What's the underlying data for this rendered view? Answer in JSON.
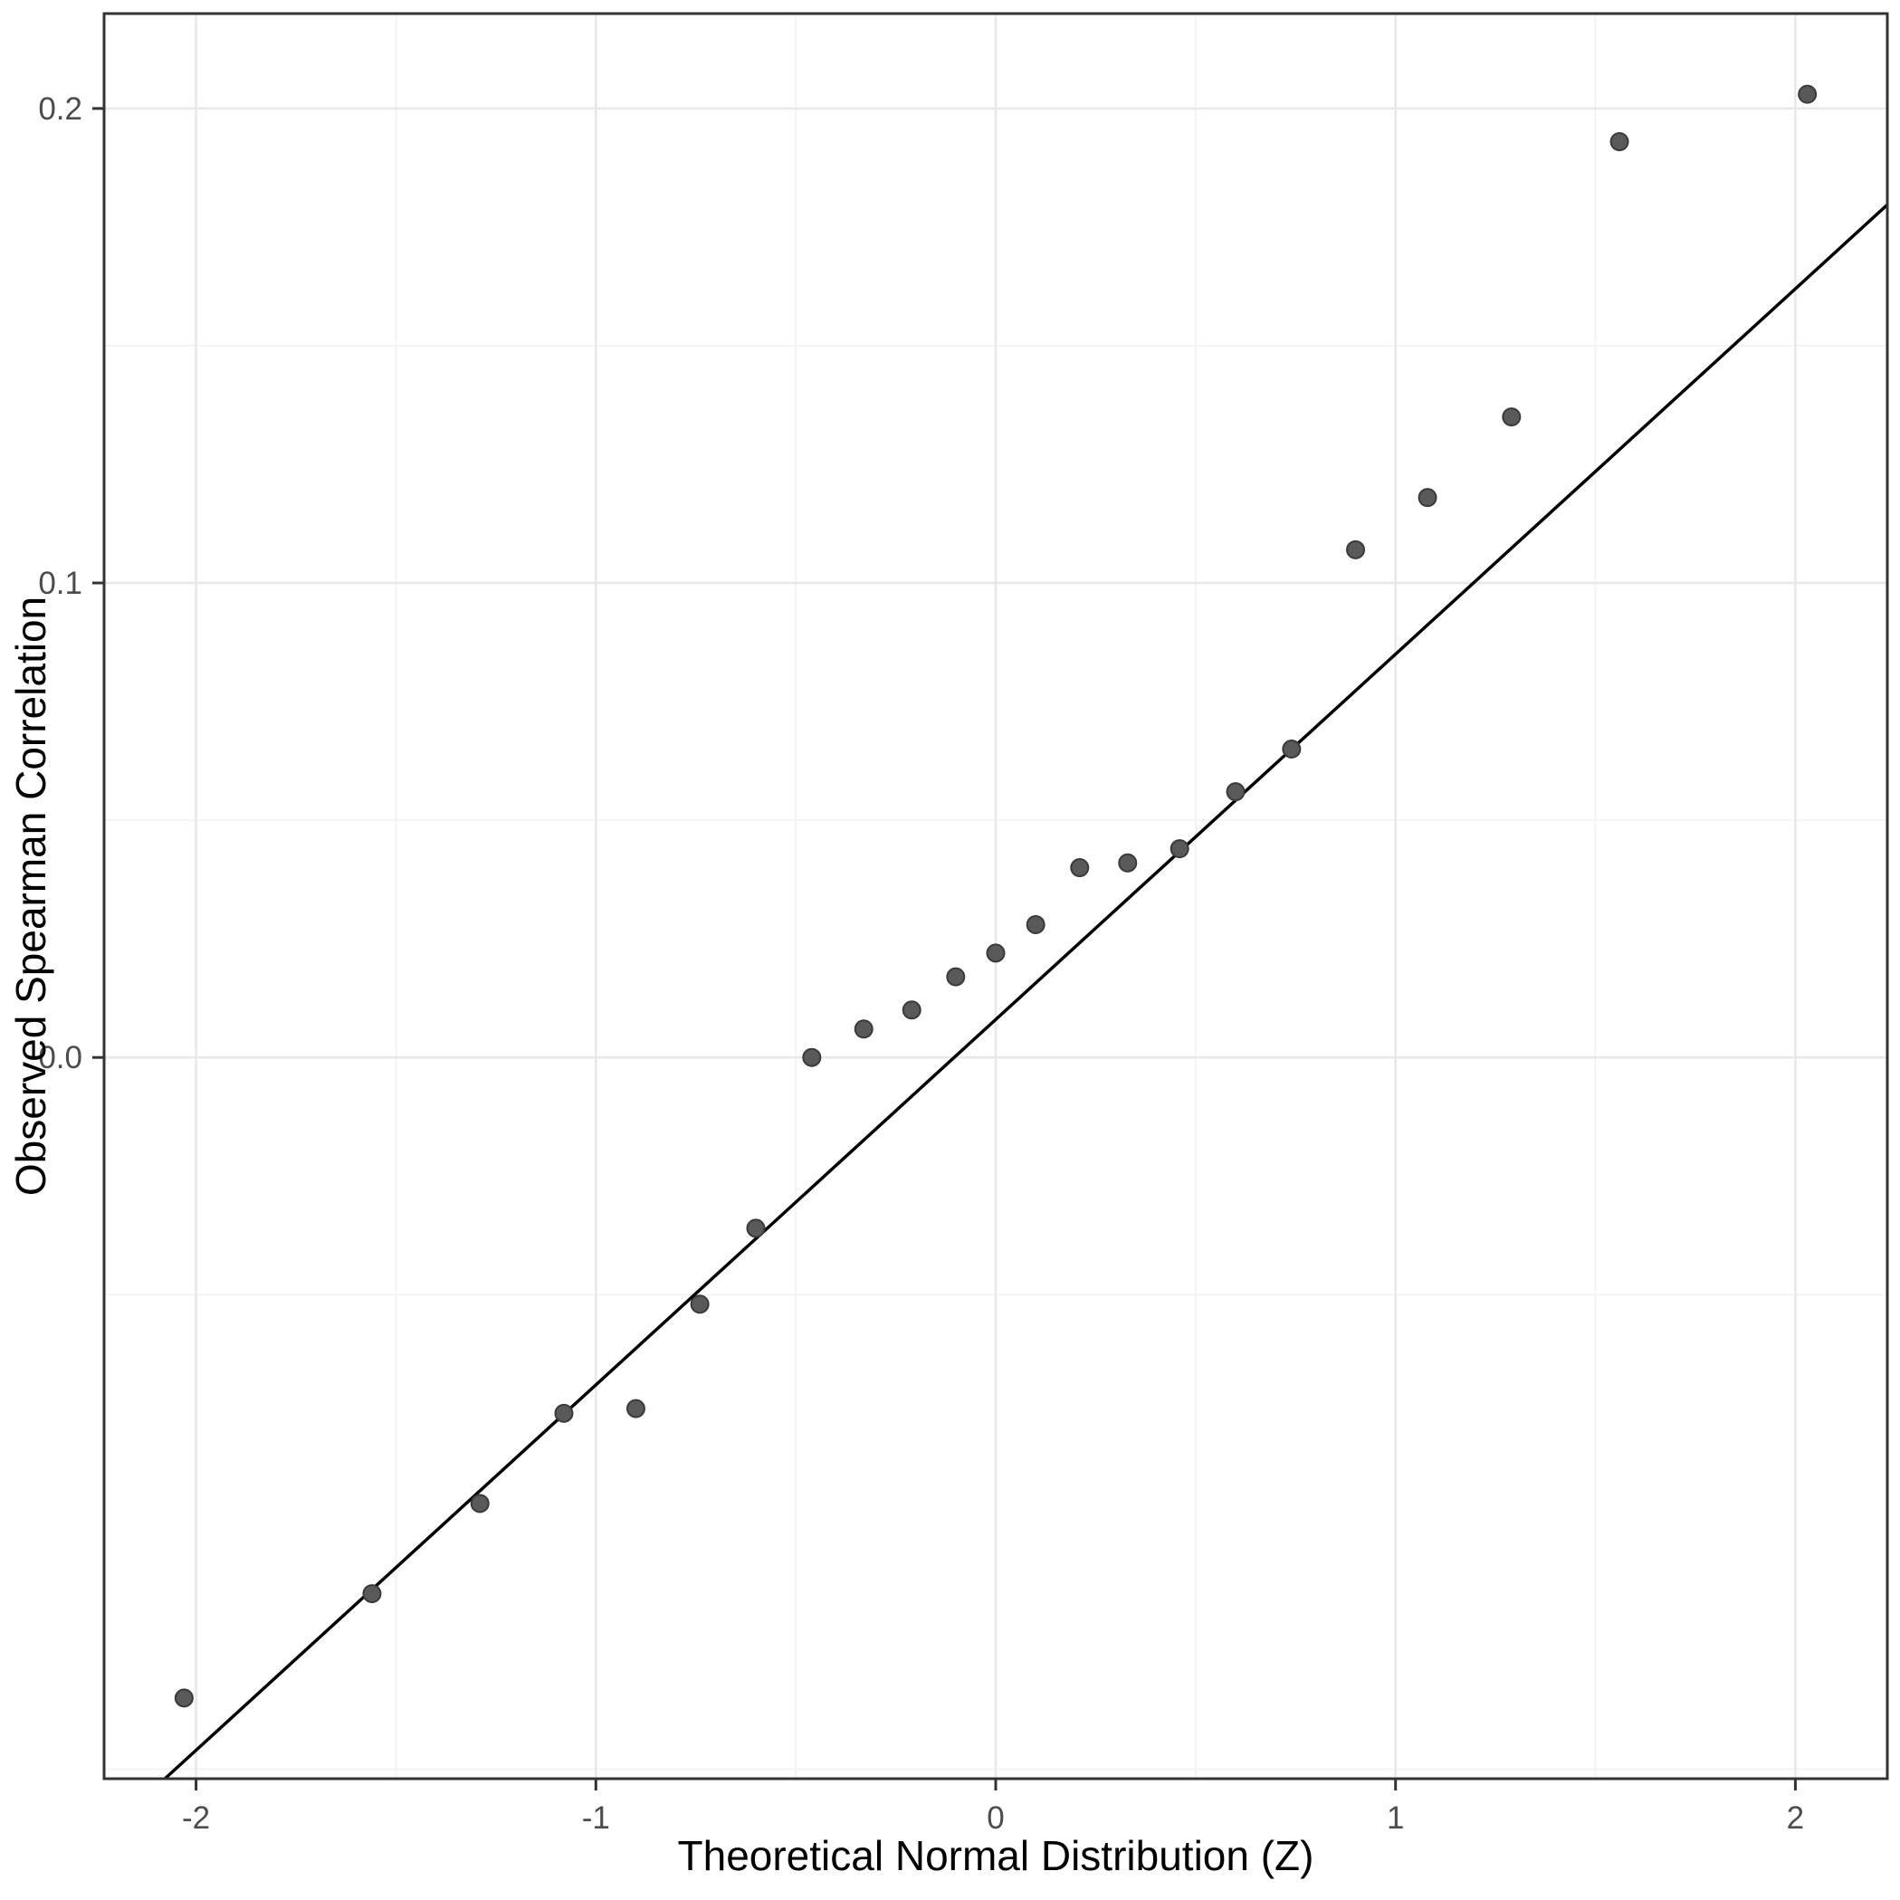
{
  "chart_data": {
    "type": "scatter",
    "subtype": "qq-plot",
    "title": "",
    "xlabel": "Theoretical Normal Distribution (Z)",
    "ylabel": "Observed Spearman Correlation",
    "x_ticks": [
      -2,
      -1,
      0,
      1,
      2
    ],
    "x_tick_labels": [
      "-2",
      "-1",
      "0",
      "1",
      "2"
    ],
    "y_ticks": [
      0.0,
      0.1,
      0.2
    ],
    "y_tick_labels": [
      "0.0",
      "0.1",
      "0.2"
    ],
    "x_minor_ticks": [
      -1.5,
      -0.5,
      0.5,
      1.5
    ],
    "y_minor_ticks": [
      -0.15,
      -0.05,
      0.05,
      0.15
    ],
    "xlim": [
      -2.23,
      2.23
    ],
    "ylim": [
      -0.152,
      0.22
    ],
    "grid": "major and minor gridlines, light gray on white panel with dark border",
    "legend": "none",
    "points": [
      {
        "x": -2.03,
        "y": -0.135
      },
      {
        "x": -1.56,
        "y": -0.113
      },
      {
        "x": -1.29,
        "y": -0.094
      },
      {
        "x": -1.08,
        "y": -0.075
      },
      {
        "x": -0.9,
        "y": -0.074
      },
      {
        "x": -0.74,
        "y": -0.052
      },
      {
        "x": -0.6,
        "y": -0.036
      },
      {
        "x": -0.46,
        "y": 0.0
      },
      {
        "x": -0.33,
        "y": 0.006
      },
      {
        "x": -0.21,
        "y": 0.01
      },
      {
        "x": -0.1,
        "y": 0.017
      },
      {
        "x": 0.0,
        "y": 0.022
      },
      {
        "x": 0.1,
        "y": 0.028
      },
      {
        "x": 0.21,
        "y": 0.04
      },
      {
        "x": 0.33,
        "y": 0.041
      },
      {
        "x": 0.46,
        "y": 0.044
      },
      {
        "x": 0.6,
        "y": 0.056
      },
      {
        "x": 0.74,
        "y": 0.065
      },
      {
        "x": 0.9,
        "y": 0.107
      },
      {
        "x": 1.08,
        "y": 0.118
      },
      {
        "x": 1.29,
        "y": 0.135
      },
      {
        "x": 1.56,
        "y": 0.193
      },
      {
        "x": 2.03,
        "y": 0.203
      }
    ],
    "reference_line": {
      "slope": 0.077,
      "intercept": 0.008
    }
  },
  "colors": {
    "background": "#ffffff",
    "panel_border": "#333333",
    "grid_major": "#e8e8e8",
    "grid_minor": "#f4f4f4",
    "point_fill": "#595959",
    "point_stroke": "#3a3a3a",
    "reference_line": "#000000",
    "tick_mark": "#333333",
    "tick_label": "#4d4d4d",
    "axis_title": "#000000"
  }
}
